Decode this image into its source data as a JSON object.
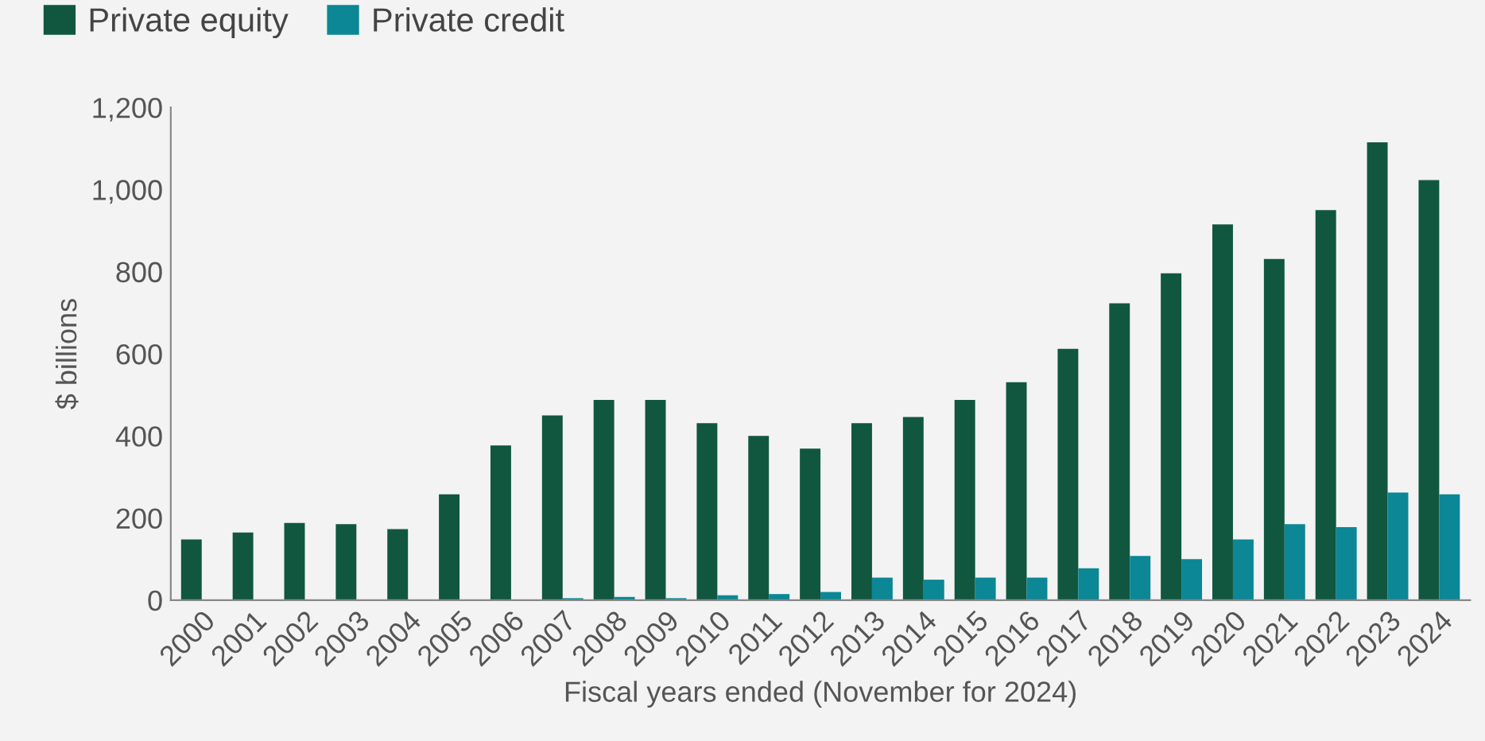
{
  "chart_data": {
    "type": "bar",
    "xlabel": "Fiscal years ended (November for 2024)",
    "ylabel": "$ billions",
    "categories": [
      "2000",
      "2001",
      "2002",
      "2003",
      "2004",
      "2005",
      "2006",
      "2007",
      "2008",
      "2009",
      "2010",
      "2011",
      "2012",
      "2013",
      "2014",
      "2015",
      "2016",
      "2017",
      "2018",
      "2019",
      "2020",
      "2021",
      "2022",
      "2023",
      "2024"
    ],
    "series": [
      {
        "name": "Private equity",
        "color": "#115740",
        "values": [
          148,
          165,
          188,
          185,
          173,
          258,
          377,
          450,
          488,
          488,
          431,
          400,
          369,
          431,
          446,
          488,
          531,
          612,
          723,
          796,
          915,
          831,
          950,
          1115,
          1023
        ]
      },
      {
        "name": "Private credit",
        "color": "#0b8795",
        "values": [
          0,
          0,
          0,
          0,
          0,
          0,
          0,
          5,
          8,
          5,
          12,
          15,
          20,
          55,
          50,
          55,
          55,
          78,
          108,
          100,
          148,
          185,
          178,
          262,
          258
        ]
      }
    ],
    "ylim": [
      0,
      1200
    ],
    "yticks": [
      0,
      {
        "value": 200,
        "label": "200"
      },
      {
        "value": 400,
        "label": "400"
      },
      {
        "value": 600,
        "label": "600"
      },
      {
        "value": 800,
        "label": "800"
      },
      {
        "value": 1000,
        "label": "1,000"
      },
      {
        "value": 1200,
        "label": "1,200"
      }
    ],
    "grid": false,
    "legend": "top left"
  }
}
